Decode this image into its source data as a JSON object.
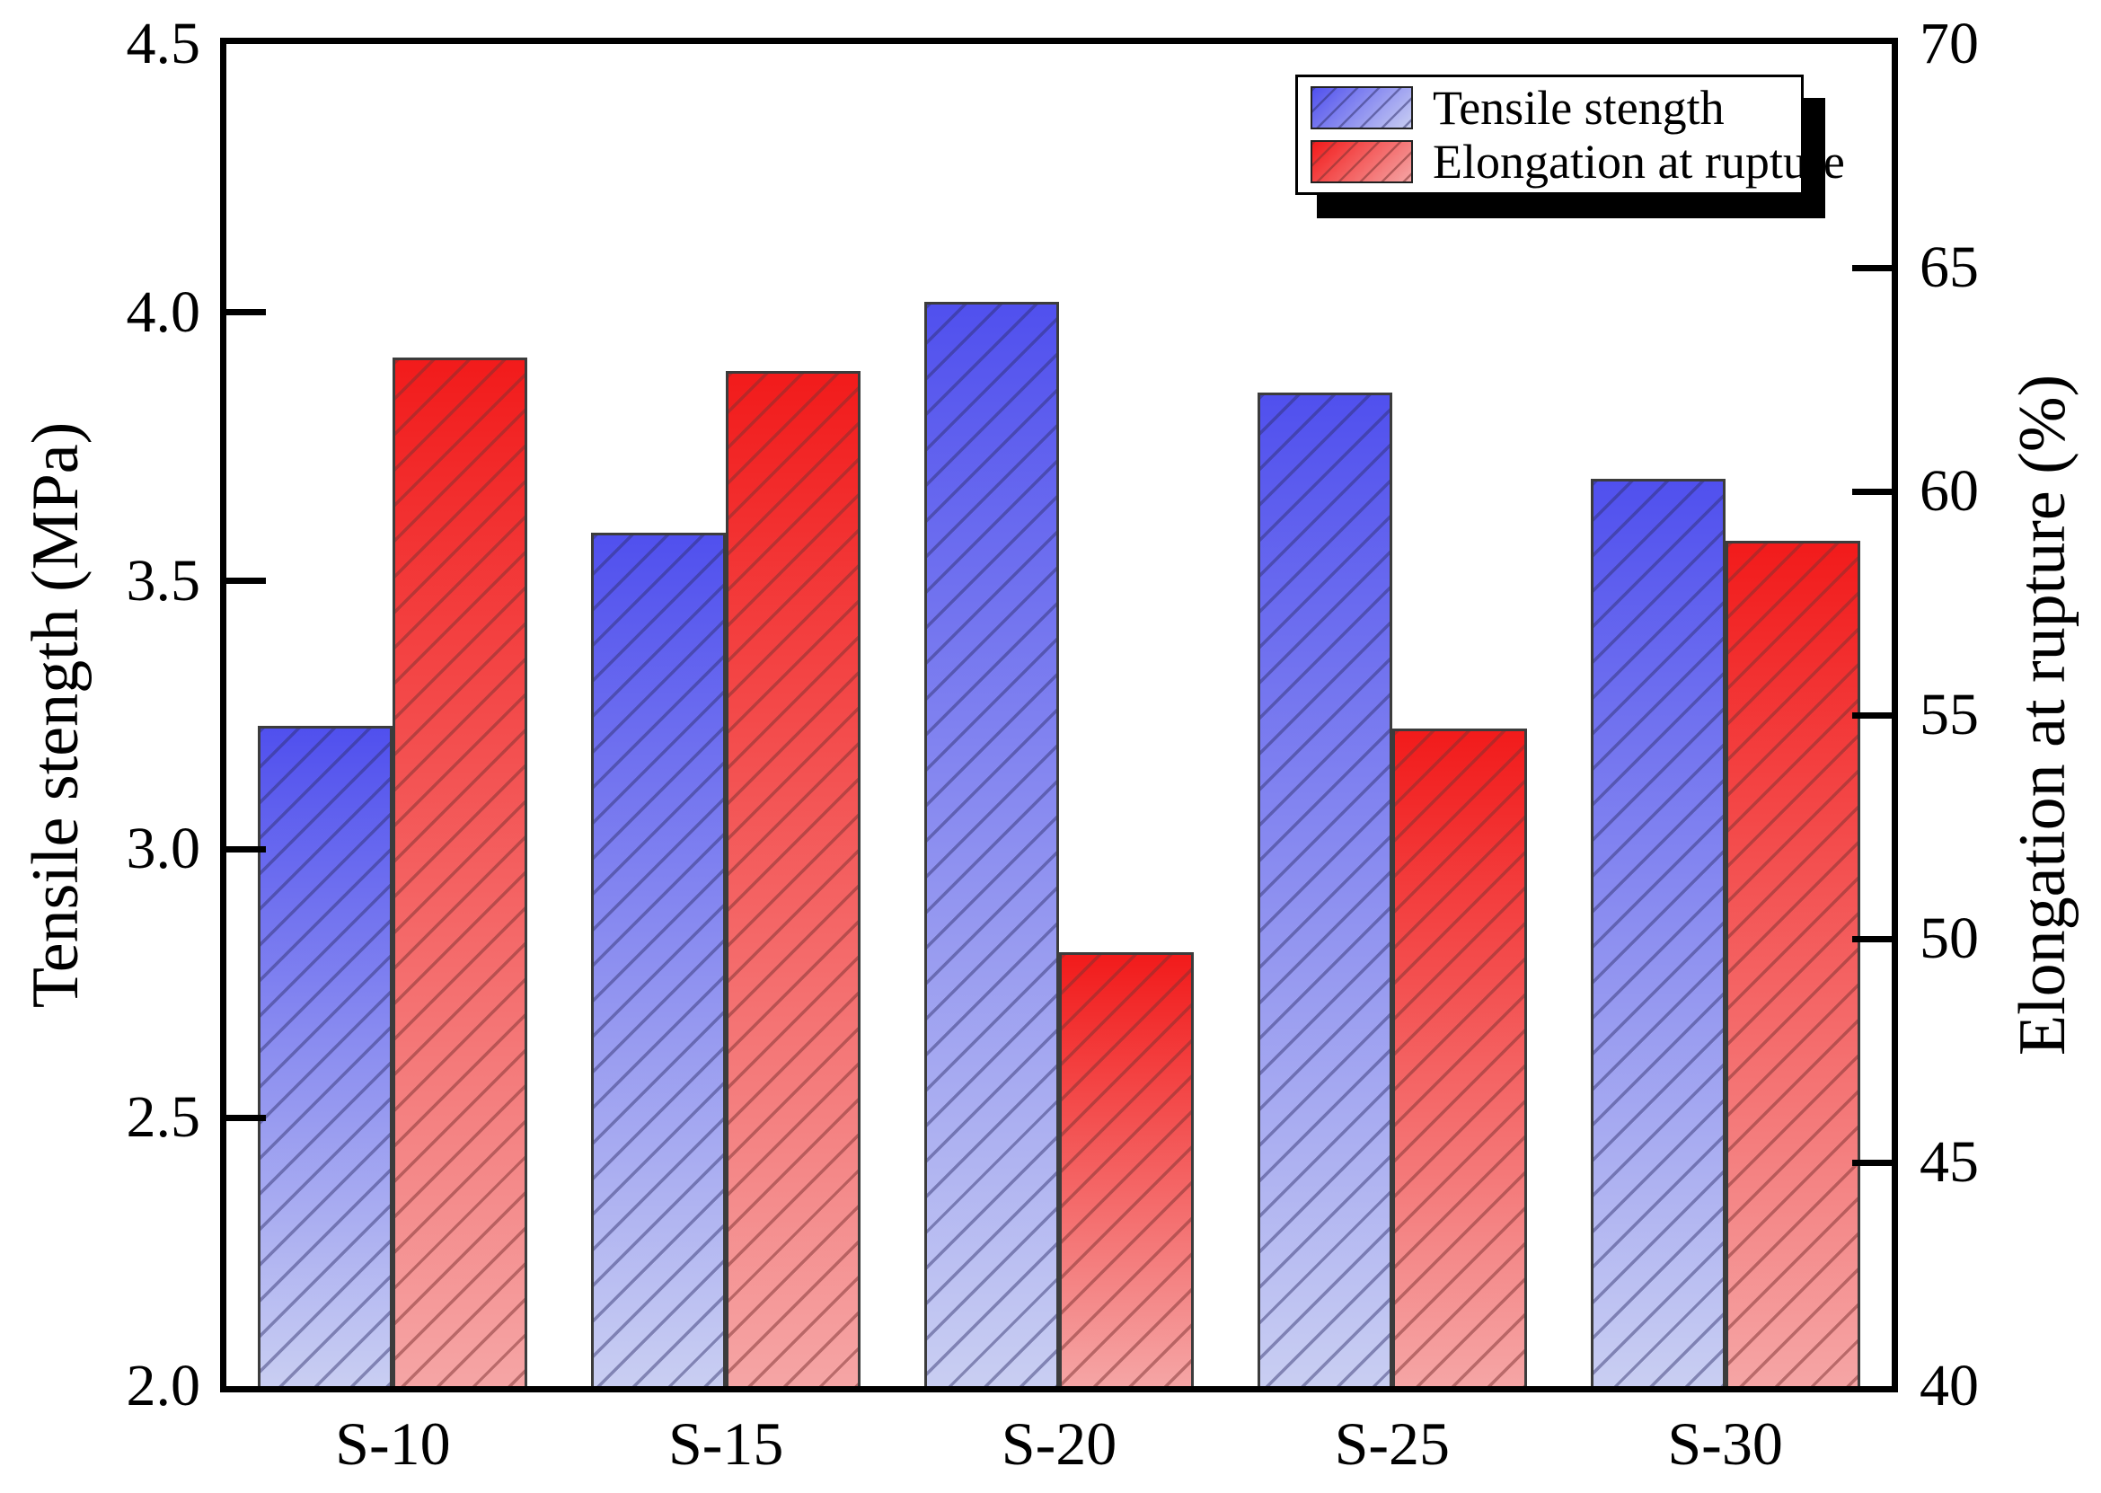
{
  "chart_data": {
    "type": "bar",
    "title": "",
    "categories": [
      "S-10",
      "S-15",
      "S-20",
      "S-25",
      "S-30"
    ],
    "series": [
      {
        "name": "Tensile stength",
        "axis": "left",
        "unit": "MPa",
        "values": [
          3.23,
          3.59,
          4.02,
          3.85,
          3.69
        ]
      },
      {
        "name": "Elongation at rupture",
        "axis": "right",
        "unit": "%",
        "values": [
          63.0,
          62.7,
          49.7,
          54.7,
          58.9
        ]
      }
    ],
    "ylabel_left": "Tensile stength (MPa)",
    "ylabel_right": "Elongation at rupture (%)",
    "xlabel": "",
    "y_left": {
      "min": 2.0,
      "max": 4.5,
      "ticks": [
        "4.5",
        "4.0",
        "3.5",
        "3.0",
        "2.5",
        "2.0"
      ]
    },
    "y_right": {
      "min": 40,
      "max": 70,
      "ticks": [
        "70",
        "65",
        "60",
        "55",
        "50",
        "45",
        "40"
      ]
    },
    "grid": false,
    "legend_position": "top-right"
  },
  "legend": {
    "items": [
      {
        "label": "Tensile stength",
        "color_key": "blue"
      },
      {
        "label": "Elongation at rupture",
        "color_key": "red"
      }
    ]
  },
  "colors": {
    "blue_top": "#5050ee",
    "blue_bottom": "#c9cef2",
    "red_top": "#f21b1b",
    "red_bottom": "#f5a5a5",
    "axis": "#000000"
  }
}
